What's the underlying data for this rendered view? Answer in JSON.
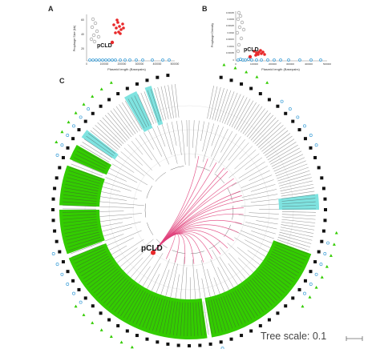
{
  "panels": {
    "a": {
      "label": "A",
      "xlabel": "Plasmid length (Basepairs)",
      "ylabel": "Prophage Size (kb)",
      "annotation": "pCLD",
      "yticks": [
        "60",
        "40",
        "20"
      ],
      "xticks": [
        "0",
        "100000",
        "200000",
        "300000",
        "400000",
        "500000"
      ]
    },
    "b": {
      "label": "B",
      "xlabel": "Plasmid length (Basepairs)",
      "ylabel": "Prophage Density",
      "annotation": "pCLD",
      "yticks": [
        "0.00035",
        "0.0003",
        "0.00025",
        "0.0002",
        "0.00015",
        "0.0001",
        "0.00005",
        "0"
      ],
      "xticks": [
        "0",
        "100000",
        "200000",
        "300000",
        "400000",
        "500000"
      ]
    },
    "c": {
      "label": "C",
      "annotation": "pCLD",
      "tree_scale": "Tree scale: 0.1"
    }
  },
  "colors": {
    "green": "#33cc00",
    "cyan": "#7fe3e0",
    "red": "#e8282a",
    "pink": "#e0407a",
    "grey": "#b5b5b5",
    "blue": "#3fa0d8",
    "black": "#111111"
  }
}
